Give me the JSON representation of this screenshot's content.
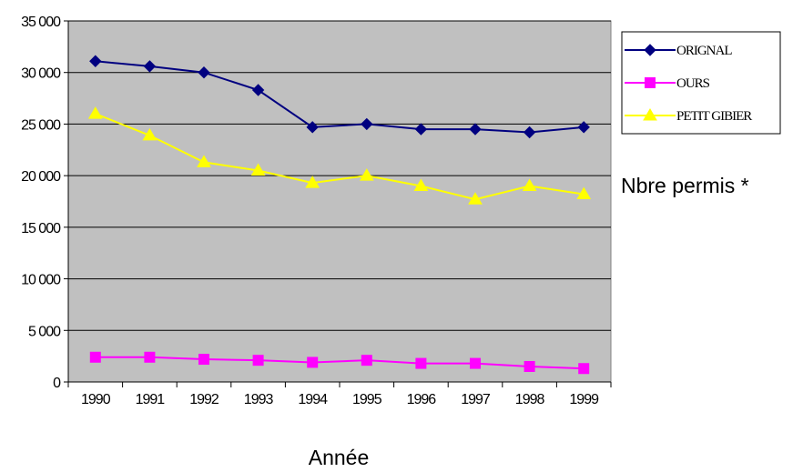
{
  "chart_data": {
    "type": "line",
    "categories": [
      "1990",
      "1991",
      "1992",
      "1993",
      "1994",
      "1995",
      "1996",
      "1997",
      "1998",
      "1999"
    ],
    "ylim": [
      0,
      35000
    ],
    "yticks": [
      0,
      5000,
      10000,
      15000,
      20000,
      25000,
      30000,
      35000
    ],
    "ytick_labels": [
      "0",
      "5 000",
      "10 000",
      "15 000",
      "20 000",
      "25 000",
      "30 000",
      "35 000"
    ],
    "xlabel": "Année",
    "ylabel": "Nbre permis *",
    "grid": true,
    "legend_position": "right",
    "plot_background": "#c0c0c0",
    "series": [
      {
        "name": "ORIGNAL",
        "color": "#000080",
        "marker": "diamond",
        "values": [
          31100,
          30600,
          30000,
          28300,
          24700,
          25000,
          24500,
          24500,
          24200,
          24700
        ]
      },
      {
        "name": "OURS",
        "color": "#ff00ff",
        "marker": "square",
        "values": [
          2400,
          2400,
          2200,
          2100,
          1900,
          2100,
          1800,
          1800,
          1500,
          1300
        ]
      },
      {
        "name": "PETIT GIBIER",
        "color": "#ffff00",
        "marker": "triangle",
        "values": [
          26000,
          23900,
          21300,
          20500,
          19300,
          20000,
          19000,
          17700,
          19000,
          18200
        ]
      }
    ]
  }
}
